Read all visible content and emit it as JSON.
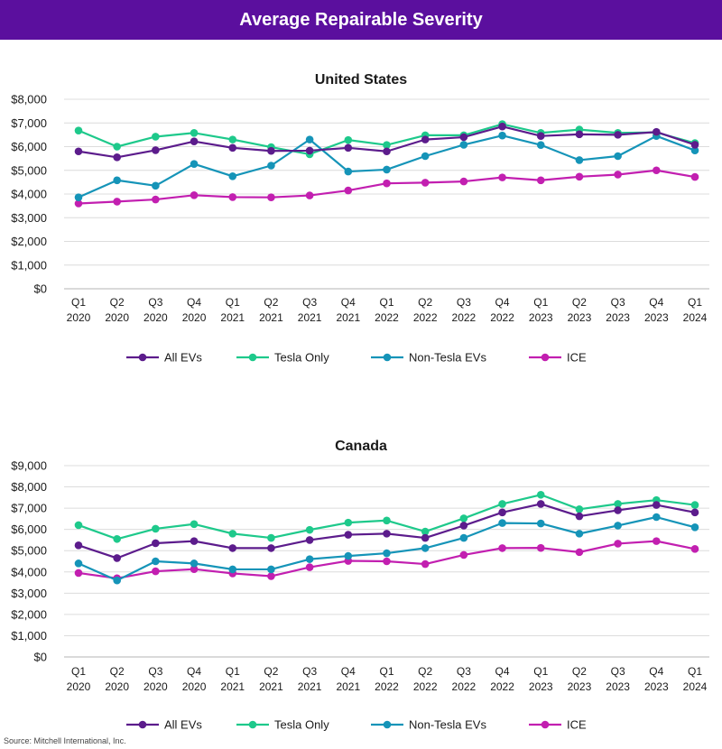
{
  "header": {
    "title": "Average Repairable Severity"
  },
  "source": "Source: Mitchell International, Inc.",
  "colors": {
    "banner": "#5b0f9e",
    "All EVs": "#5c1c8c",
    "Tesla Only": "#1ec98b",
    "Non-Tesla EVs": "#1594b8",
    "ICE": "#c21fb0"
  },
  "chart_data": [
    {
      "type": "line",
      "title": "United States",
      "categories": [
        [
          "Q1",
          "2020"
        ],
        [
          "Q2",
          "2020"
        ],
        [
          "Q3",
          "2020"
        ],
        [
          "Q4",
          "2020"
        ],
        [
          "Q1",
          "2021"
        ],
        [
          "Q2",
          "2021"
        ],
        [
          "Q3",
          "2021"
        ],
        [
          "Q4",
          "2021"
        ],
        [
          "Q1",
          "2022"
        ],
        [
          "Q2",
          "2022"
        ],
        [
          "Q3",
          "2022"
        ],
        [
          "Q4",
          "2022"
        ],
        [
          "Q1",
          "2023"
        ],
        [
          "Q2",
          "2023"
        ],
        [
          "Q3",
          "2023"
        ],
        [
          "Q4",
          "2023"
        ],
        [
          "Q1",
          "2024"
        ]
      ],
      "ylim": [
        0,
        8000
      ],
      "yticks": [
        0,
        1000,
        2000,
        3000,
        4000,
        5000,
        6000,
        7000,
        8000
      ],
      "ytick_labels": [
        "$0",
        "$1,000",
        "$2,000",
        "$3,000",
        "$4,000",
        "$5,000",
        "$6,000",
        "$7,000",
        "$8,000"
      ],
      "grid": true,
      "legend": "bottom",
      "series": [
        {
          "name": "All EVs",
          "values": [
            5800,
            5550,
            5850,
            6220,
            5950,
            5820,
            5830,
            5950,
            5800,
            6300,
            6400,
            6850,
            6450,
            6520,
            6500,
            6620,
            6080
          ]
        },
        {
          "name": "Tesla Only",
          "values": [
            6680,
            6000,
            6420,
            6580,
            6300,
            5980,
            5680,
            6280,
            6070,
            6480,
            6480,
            6950,
            6580,
            6720,
            6580,
            6600,
            6150
          ]
        },
        {
          "name": "Non-Tesla EVs",
          "values": [
            3860,
            4580,
            4350,
            5270,
            4750,
            5200,
            6300,
            4950,
            5030,
            5600,
            6080,
            6470,
            6070,
            5430,
            5600,
            6450,
            5840
          ]
        },
        {
          "name": "ICE",
          "values": [
            3600,
            3680,
            3770,
            3950,
            3870,
            3860,
            3940,
            4150,
            4450,
            4480,
            4530,
            4700,
            4580,
            4730,
            4820,
            5000,
            4720
          ]
        }
      ]
    },
    {
      "type": "line",
      "title": "Canada",
      "categories": [
        [
          "Q1",
          "2020"
        ],
        [
          "Q2",
          "2020"
        ],
        [
          "Q3",
          "2020"
        ],
        [
          "Q4",
          "2020"
        ],
        [
          "Q1",
          "2021"
        ],
        [
          "Q2",
          "2021"
        ],
        [
          "Q3",
          "2021"
        ],
        [
          "Q4",
          "2021"
        ],
        [
          "Q1",
          "2022"
        ],
        [
          "Q2",
          "2022"
        ],
        [
          "Q3",
          "2022"
        ],
        [
          "Q4",
          "2022"
        ],
        [
          "Q1",
          "2023"
        ],
        [
          "Q2",
          "2023"
        ],
        [
          "Q3",
          "2023"
        ],
        [
          "Q4",
          "2023"
        ],
        [
          "Q1",
          "2024"
        ]
      ],
      "ylim": [
        0,
        9000
      ],
      "yticks": [
        0,
        1000,
        2000,
        3000,
        4000,
        5000,
        6000,
        7000,
        8000,
        9000
      ],
      "ytick_labels": [
        "$0",
        "$1,000",
        "$2,000",
        "$3,000",
        "$4,000",
        "$5,000",
        "$6,000",
        "$7,000",
        "$8,000",
        "$9,000"
      ],
      "grid": true,
      "legend": "bottom",
      "series": [
        {
          "name": "All EVs",
          "values": [
            5250,
            4650,
            5350,
            5450,
            5120,
            5120,
            5500,
            5750,
            5800,
            5600,
            6180,
            6800,
            7200,
            6620,
            6900,
            7150,
            6800
          ]
        },
        {
          "name": "Tesla Only",
          "values": [
            6200,
            5550,
            6030,
            6250,
            5800,
            5600,
            5980,
            6320,
            6420,
            5900,
            6520,
            7200,
            7630,
            6950,
            7200,
            7380,
            7150
          ]
        },
        {
          "name": "Non-Tesla EVs",
          "values": [
            4400,
            3600,
            4500,
            4400,
            4120,
            4120,
            4600,
            4750,
            4880,
            5120,
            5600,
            6300,
            6280,
            5800,
            6180,
            6580,
            6100
          ]
        },
        {
          "name": "ICE",
          "values": [
            3950,
            3700,
            4030,
            4130,
            3930,
            3800,
            4220,
            4520,
            4500,
            4370,
            4800,
            5120,
            5130,
            4930,
            5330,
            5450,
            5080
          ]
        }
      ]
    }
  ]
}
